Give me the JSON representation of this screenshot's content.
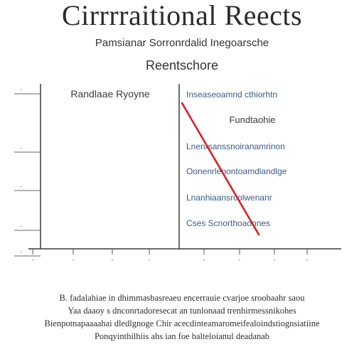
{
  "title": "Cirrrraitional Reects",
  "subtitle": "Pamsianar Sorronrdalid Inegoarsche",
  "subtitle2": "Reentschore",
  "chart_data": {
    "type": "line",
    "title": "",
    "xlabel": "",
    "ylabel": "",
    "panel_left": {
      "header": "Randlaae Ryoyne",
      "y_ticks": [
        "-",
        "-",
        "-",
        "-",
        "-"
      ],
      "x_ticks": [
        "-",
        "-",
        "-",
        "-"
      ]
    },
    "panel_right": {
      "header": "Fundtaohie",
      "entries": [
        "Inseaseoamnd cthiorhtn",
        "Lnenrsanssnoiranamrinon",
        "Oonenrlenontoamdlandlge",
        "Lnanhiaansrcolwenanr",
        "Cses Scnorthoaonnes"
      ],
      "x_ticks": [
        "-",
        "-",
        "-",
        "-"
      ],
      "trend_line": {
        "color": "#e0191c",
        "x": [
          0.0,
          1.0
        ],
        "y": [
          1.0,
          0.0
        ]
      }
    }
  },
  "body": {
    "lines": [
      "B. fadalahiae in dhimmasbasreaeu encerrauie cvarjoe sroobaahr saou",
      "Yaa daaoy s dnconrtadoresecat an tunlonaad trenhirmessnikohes",
      "Bienpotnapaaaahai dledlgnoge Chir acecdinteamaromeifealoindstiognsiatiine",
      "Ponqyinthilhiis ahs ian foe balteloianul deadanab"
    ]
  }
}
